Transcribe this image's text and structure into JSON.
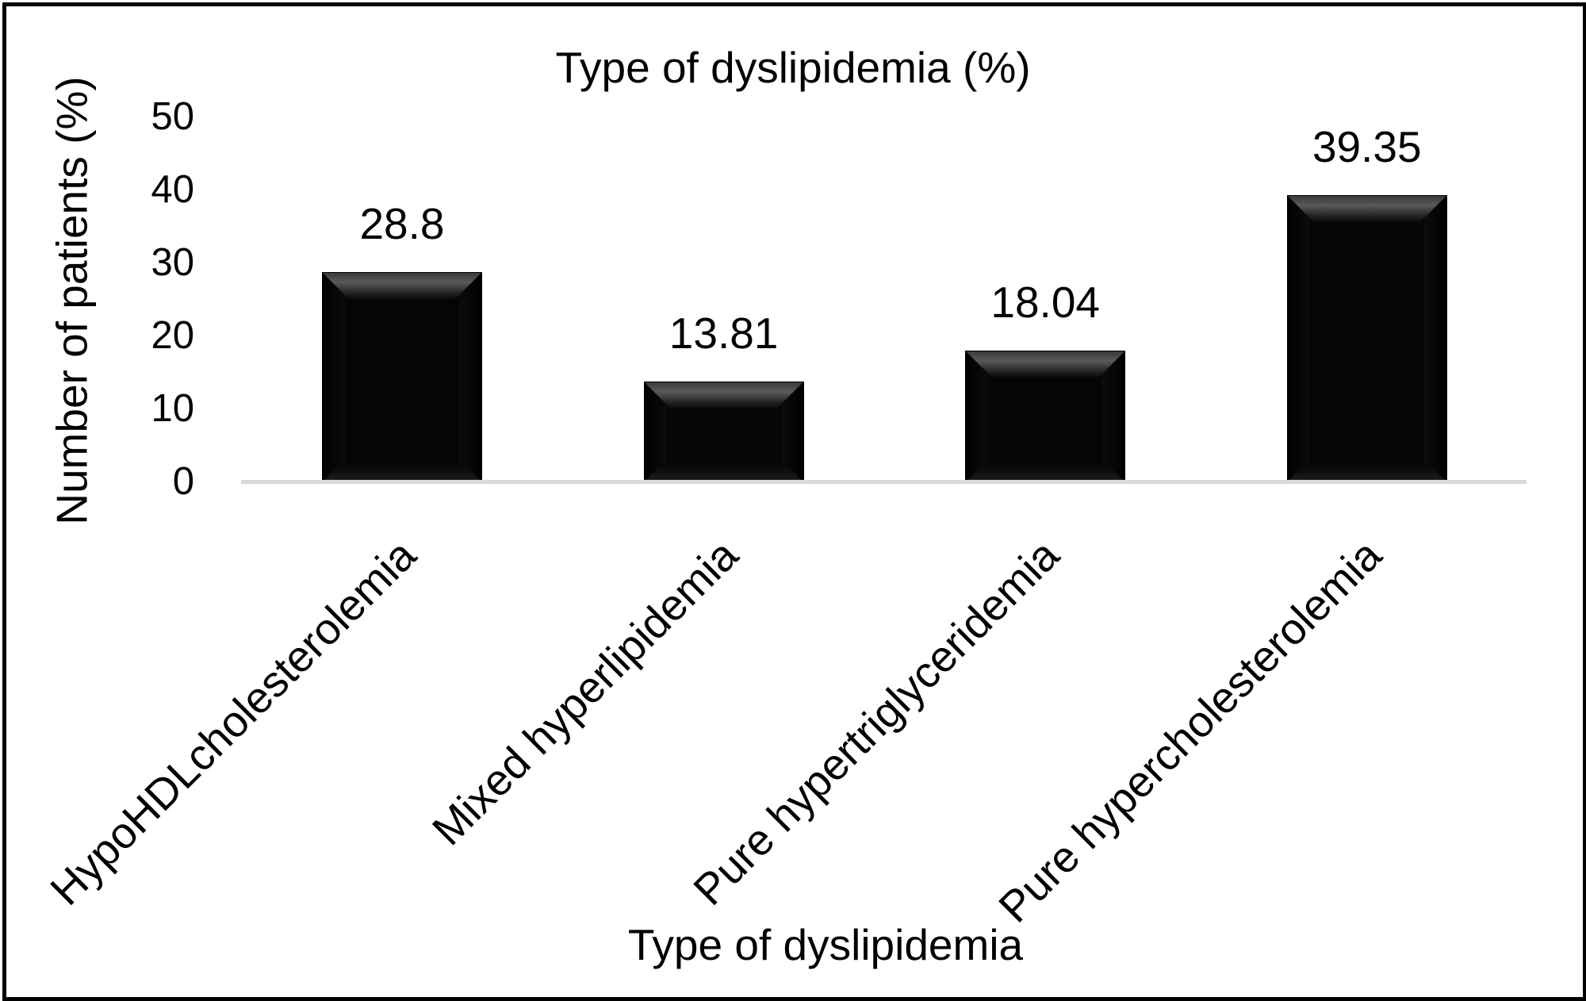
{
  "chart_data": {
    "type": "bar",
    "title": "Type of dyslipidemia (%)",
    "xlabel": "Type of dyslipidemia",
    "ylabel": "Number of patients (%)",
    "categories": [
      "HypoHDLcholesterolemia",
      "Mixed hyperlipidemia",
      "Pure hypertriglyceridemia",
      "Pure hypercholesterolemia"
    ],
    "values": [
      28.8,
      13.81,
      18.04,
      39.35
    ],
    "data_labels": [
      "28.8",
      "13.81",
      "18.04",
      "39.35"
    ],
    "ylim": [
      0,
      50
    ],
    "yticks": [
      "0",
      "10",
      "20",
      "30",
      "40",
      "50"
    ],
    "grid": false,
    "legend": null,
    "bar_color": "#000000",
    "axis_line_color": "#d9d9d9"
  }
}
